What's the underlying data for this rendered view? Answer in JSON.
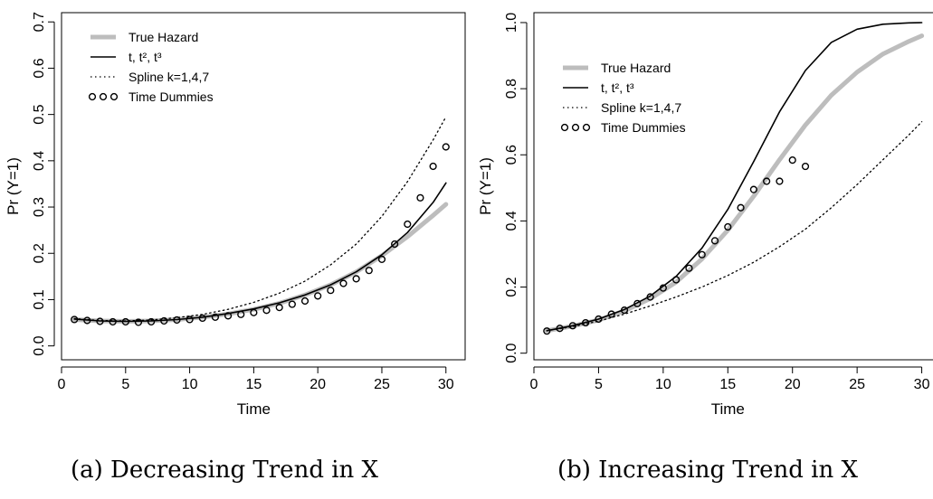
{
  "chart_data": [
    {
      "type": "line",
      "caption": "(a) Decreasing Trend in X",
      "xlabel": "Time",
      "ylabel": "Pr (Y=1)",
      "xlim": [
        0,
        31.5
      ],
      "ylim": [
        -0.03,
        0.72
      ],
      "xticks": [
        0,
        5,
        10,
        15,
        20,
        25,
        30
      ],
      "xtick_labels": [
        "0",
        "5",
        "10",
        "15",
        "20",
        "25",
        "30"
      ],
      "yticks": [
        0.0,
        0.1,
        0.2,
        0.3,
        0.4,
        0.5,
        0.6,
        0.7
      ],
      "ytick_labels": [
        "0.0",
        "0.1",
        "0.2",
        "0.3",
        "0.4",
        "0.5",
        "0.6",
        "0.7"
      ],
      "legend_position": "top-left",
      "series": [
        {
          "name": "True Hazard",
          "style": "thick-gray",
          "x": [
            1,
            3,
            5,
            7,
            9,
            11,
            13,
            15,
            17,
            19,
            21,
            23,
            25,
            27,
            29,
            30
          ],
          "y": [
            0.057,
            0.054,
            0.053,
            0.054,
            0.057,
            0.062,
            0.069,
            0.079,
            0.092,
            0.11,
            0.132,
            0.16,
            0.195,
            0.236,
            0.282,
            0.306
          ]
        },
        {
          "name": "t, t², t³",
          "style": "solid-black",
          "x": [
            1,
            3,
            5,
            7,
            9,
            11,
            13,
            15,
            17,
            19,
            21,
            23,
            25,
            27,
            29,
            30
          ],
          "y": [
            0.058,
            0.054,
            0.053,
            0.054,
            0.057,
            0.062,
            0.07,
            0.08,
            0.093,
            0.11,
            0.132,
            0.16,
            0.197,
            0.245,
            0.31,
            0.352
          ]
        },
        {
          "name": "Spline k=1,4,7",
          "style": "dotted-black",
          "x": [
            1,
            3,
            5,
            7,
            9,
            11,
            13,
            15,
            17,
            19,
            21,
            23,
            25,
            27,
            29,
            30
          ],
          "y": [
            0.059,
            0.055,
            0.054,
            0.056,
            0.061,
            0.068,
            0.079,
            0.094,
            0.114,
            0.14,
            0.175,
            0.22,
            0.28,
            0.355,
            0.445,
            0.495
          ]
        },
        {
          "name": "Time Dummies",
          "style": "open-circles",
          "x": [
            1,
            2,
            3,
            4,
            5,
            6,
            7,
            8,
            9,
            10,
            11,
            12,
            13,
            14,
            15,
            16,
            17,
            18,
            19,
            20,
            21,
            22,
            23,
            24,
            25,
            26,
            27,
            28,
            29,
            30
          ],
          "y": [
            0.057,
            0.055,
            0.053,
            0.052,
            0.052,
            0.051,
            0.052,
            0.054,
            0.056,
            0.057,
            0.06,
            0.062,
            0.065,
            0.068,
            0.072,
            0.077,
            0.083,
            0.09,
            0.097,
            0.108,
            0.12,
            0.135,
            0.145,
            0.163,
            0.187,
            0.22,
            0.263,
            0.32,
            0.388,
            0.43
          ]
        }
      ]
    },
    {
      "type": "line",
      "caption": "(b) Increasing Trend in X",
      "xlabel": "Time",
      "ylabel": "Pr (Y=1)",
      "xlim": [
        0,
        31.5
      ],
      "ylim": [
        -0.02,
        1.03
      ],
      "xticks": [
        0,
        5,
        10,
        15,
        20,
        25,
        30
      ],
      "xtick_labels": [
        "0",
        "5",
        "10",
        "15",
        "20",
        "25",
        "30"
      ],
      "yticks": [
        0.0,
        0.2,
        0.4,
        0.6,
        0.8,
        1.0
      ],
      "ytick_labels": [
        "0.0",
        "0.2",
        "0.4",
        "0.6",
        "0.8",
        "1.0"
      ],
      "legend_position": "top-left",
      "series": [
        {
          "name": "True Hazard",
          "style": "thick-gray",
          "x": [
            1,
            3,
            5,
            7,
            9,
            11,
            13,
            15,
            17,
            19,
            21,
            23,
            25,
            27,
            29,
            30
          ],
          "y": [
            0.068,
            0.082,
            0.1,
            0.128,
            0.165,
            0.215,
            0.285,
            0.372,
            0.475,
            0.585,
            0.69,
            0.78,
            0.85,
            0.905,
            0.943,
            0.96
          ]
        },
        {
          "name": "t, t², t³",
          "style": "solid-black",
          "x": [
            1,
            3,
            5,
            7,
            9,
            11,
            13,
            15,
            17,
            19,
            21,
            23,
            25,
            27,
            29,
            30
          ],
          "y": [
            0.068,
            0.083,
            0.103,
            0.132,
            0.173,
            0.232,
            0.318,
            0.435,
            0.58,
            0.73,
            0.855,
            0.94,
            0.98,
            0.995,
            0.999,
            1.0
          ]
        },
        {
          "name": "Spline k=1,4,7",
          "style": "dotted-black",
          "x": [
            1,
            3,
            5,
            7,
            9,
            11,
            13,
            15,
            17,
            19,
            21,
            23,
            25,
            27,
            29,
            30
          ],
          "y": [
            0.068,
            0.08,
            0.097,
            0.118,
            0.143,
            0.17,
            0.2,
            0.235,
            0.275,
            0.322,
            0.375,
            0.44,
            0.51,
            0.585,
            0.66,
            0.7
          ]
        },
        {
          "name": "Time Dummies",
          "style": "open-circles",
          "x": [
            1,
            2,
            3,
            4,
            5,
            6,
            7,
            8,
            9,
            10,
            11,
            12,
            13,
            14,
            15,
            16,
            17,
            18,
            19,
            20,
            21
          ],
          "y": [
            0.067,
            0.075,
            0.083,
            0.092,
            0.103,
            0.118,
            0.13,
            0.15,
            0.17,
            0.197,
            0.222,
            0.257,
            0.298,
            0.34,
            0.382,
            0.44,
            0.495,
            0.52,
            0.52,
            0.584,
            0.565
          ]
        }
      ]
    }
  ]
}
